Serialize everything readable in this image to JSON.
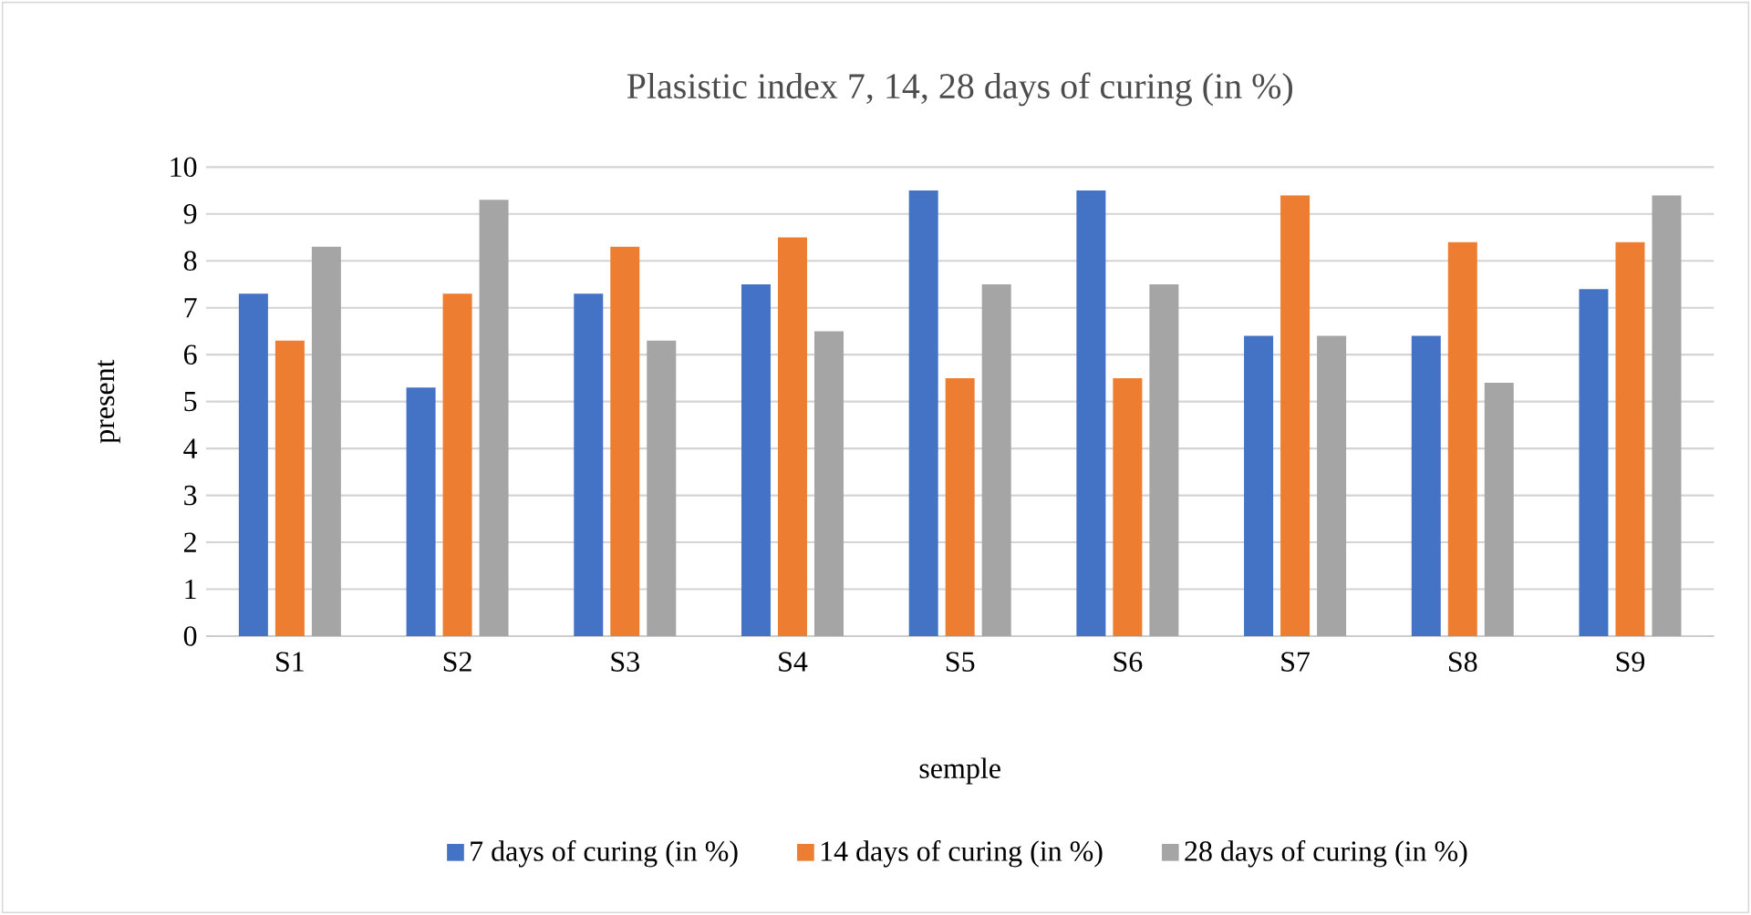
{
  "chart_data": {
    "type": "bar",
    "title": "Plasistic index 7, 14, 28 days of curing (in %)",
    "xlabel": "semple",
    "ylabel": "present",
    "categories": [
      "S1",
      "S2",
      "S3",
      "S4",
      "S5",
      "S6",
      "S7",
      "S8",
      "S9"
    ],
    "series": [
      {
        "name": "7 days of curing (in %)",
        "color": "#4472c4",
        "values": [
          7.3,
          5.3,
          7.3,
          7.5,
          9.5,
          9.5,
          6.4,
          6.4,
          7.4
        ]
      },
      {
        "name": "14 days of curing (in %)",
        "color": "#ed7d31",
        "values": [
          6.3,
          7.3,
          8.3,
          8.5,
          5.5,
          5.5,
          9.4,
          8.4,
          8.4
        ]
      },
      {
        "name": "28 days of curing (in %)",
        "color": "#a5a5a5",
        "values": [
          8.3,
          9.3,
          6.3,
          6.5,
          7.5,
          7.5,
          6.4,
          5.4,
          9.4
        ]
      }
    ],
    "ylim": [
      0,
      10
    ],
    "yticks": [
      0,
      1,
      2,
      3,
      4,
      5,
      6,
      7,
      8,
      9,
      10
    ],
    "grid": "y",
    "legend": "bottom"
  }
}
